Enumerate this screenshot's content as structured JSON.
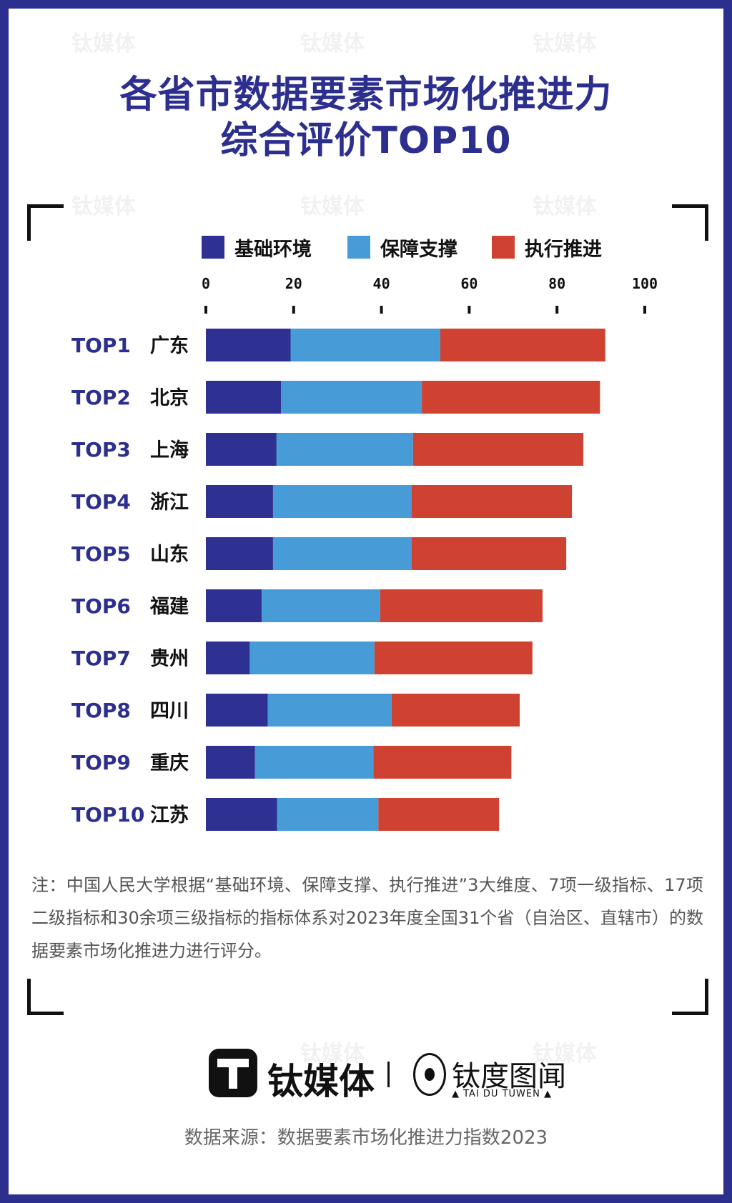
{
  "header": {
    "title_line1": "各省市数据要素市场化推进力",
    "title_line2": "综合评价TOP10"
  },
  "watermark": "钛媒体",
  "colors": {
    "frame": "#2d2f8e",
    "rank_label": "#2d2f8e"
  },
  "chart_data": {
    "type": "bar",
    "orientation": "horizontal",
    "stacked": true,
    "xlim": [
      0,
      100
    ],
    "x_ticks": [
      "0",
      "20",
      "40",
      "60",
      "80",
      "100"
    ],
    "grid": false,
    "legend_position": "top",
    "ranks": [
      "TOP1",
      "TOP2",
      "TOP3",
      "TOP4",
      "TOP5",
      "TOP6",
      "TOP7",
      "TOP8",
      "TOP9",
      "TOP10"
    ],
    "categories": [
      "广东",
      "北京",
      "上海",
      "浙江",
      "山东",
      "福建",
      "贵州",
      "四川",
      "重庆",
      "江苏"
    ],
    "series": [
      {
        "name": "基础环境",
        "color": "#2e3192",
        "values": [
          19.3,
          17.1,
          16.1,
          15.3,
          15.3,
          12.7,
          10.0,
          14.1,
          11.2,
          16.2
        ]
      },
      {
        "name": "保障支撑",
        "color": "#479bd6",
        "values": [
          34.1,
          32.1,
          31.1,
          31.6,
          31.6,
          27.0,
          28.4,
          28.2,
          27.0,
          23.1
        ]
      },
      {
        "name": "执行推进",
        "color": "#cf4232",
        "values": [
          37.6,
          40.6,
          38.8,
          36.5,
          35.2,
          37.0,
          36.0,
          29.2,
          31.4,
          27.5
        ]
      }
    ]
  },
  "note": "注：中国人民大学根据“基础环境、保障支撑、执行推进”3大维度、7项一级指标、17项二级指标和30余项三级指标的指标体系对2023年度全国31个省（自治区、直辖市）的数据要素市场化推进力进行评分。",
  "logos": {
    "brand1": "钛媒体",
    "brand2": "钛度图闻",
    "brand2_sub": "▲ TAI DU TUWEN ▲"
  },
  "source": "数据来源：数据要素市场化推进力指数2023"
}
